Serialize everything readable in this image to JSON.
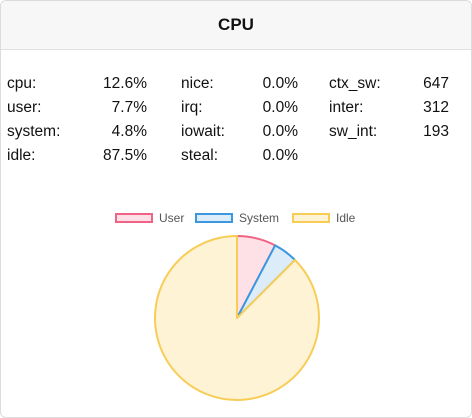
{
  "panel": {
    "title": "CPU"
  },
  "stats": {
    "col1": [
      {
        "label": "cpu:",
        "value": "12.6%"
      },
      {
        "label": "user:",
        "value": "7.7%"
      },
      {
        "label": "system:",
        "value": "4.8%"
      },
      {
        "label": "idle:",
        "value": "87.5%"
      }
    ],
    "col2": [
      {
        "label": "nice:",
        "value": "0.0%"
      },
      {
        "label": "irq:",
        "value": "0.0%"
      },
      {
        "label": "iowait:",
        "value": "0.0%"
      },
      {
        "label": "steal:",
        "value": "0.0%"
      }
    ],
    "col3": [
      {
        "label": "ctx_sw:",
        "value": "647"
      },
      {
        "label": "inter:",
        "value": "312"
      },
      {
        "label": "sw_int:",
        "value": "193"
      }
    ]
  },
  "chart_data": {
    "type": "pie",
    "legend_position": "top",
    "series": [
      {
        "name": "User",
        "value": 7.7,
        "fill": "#fde1e7",
        "stroke": "#f06384"
      },
      {
        "name": "System",
        "value": 4.8,
        "fill": "#dcecf8",
        "stroke": "#3a97e0"
      },
      {
        "name": "Idle",
        "value": 87.5,
        "fill": "#fff3d6",
        "stroke": "#f7cd58"
      }
    ]
  }
}
